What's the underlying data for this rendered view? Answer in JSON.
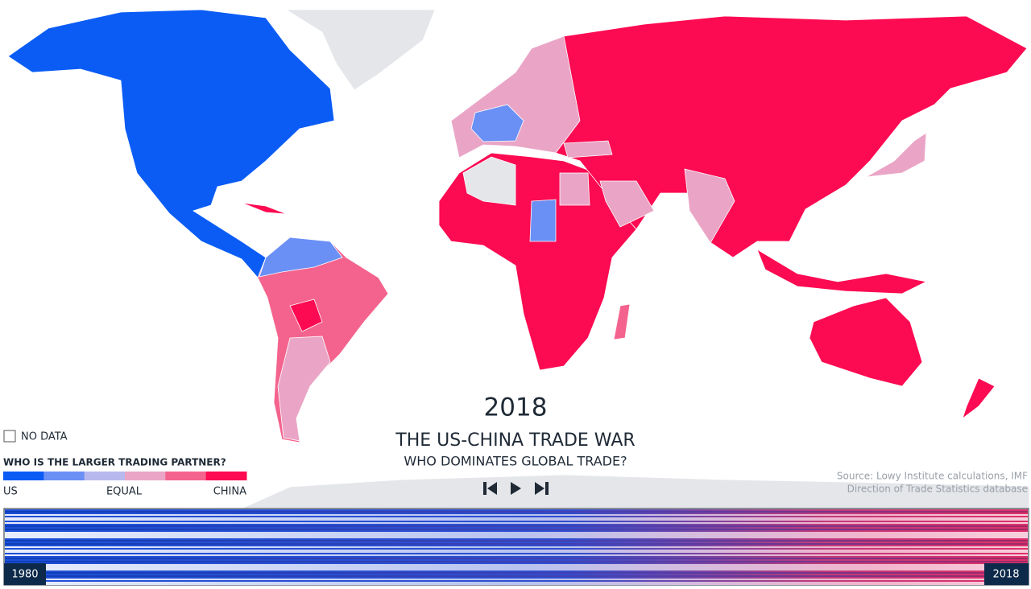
{
  "header": {
    "year": "2018",
    "title": "THE US-CHINA TRADE WAR",
    "subtitle": "WHO DOMINATES GLOBAL TRADE?"
  },
  "legend": {
    "no_data": "NO DATA",
    "title": "WHO IS THE LARGER TRADING PARTNER?",
    "labels": [
      "US",
      "EQUAL",
      "CHINA"
    ],
    "colors": [
      "#0a5cf5",
      "#6a8ff5",
      "#b7b9ee",
      "#eaa5c6",
      "#f4638d",
      "#fc0a52"
    ]
  },
  "source": [
    "Source: Lowy Institute calculations, IMF",
    "Direction of Trade Statistics database"
  ],
  "timeline": {
    "start": "1980",
    "end": "2018"
  }
}
